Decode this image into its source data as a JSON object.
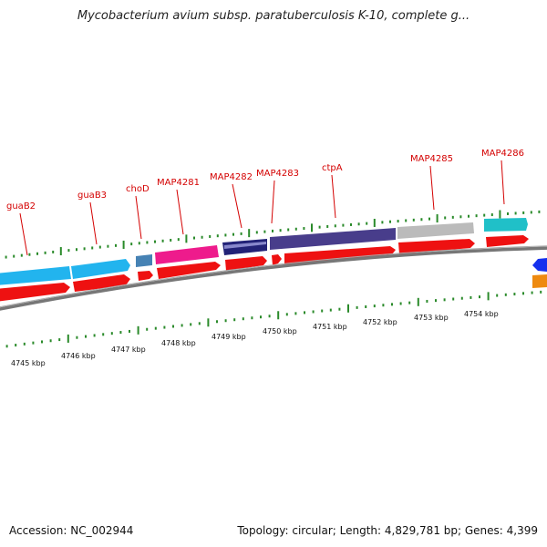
{
  "title": "Mycobacterium avium subsp. paratuberculosis K-10, complete g...",
  "footer": {
    "accession": "Accession: NC_002944",
    "info": "Topology: circular; Length: 4,829,781 bp; Genes: 4,399"
  },
  "kbp_labels": [
    "4745 kbp",
    "4746 kbp",
    "4747 kbp",
    "4748 kbp",
    "4749 kbp",
    "4750 kbp",
    "4751 kbp",
    "4752 kbp",
    "4753 kbp",
    "4754 kbp"
  ],
  "gene_labels": [
    "guaB2",
    "guaB3",
    "choD",
    "MAP4281",
    "MAP4282",
    "MAP4283",
    "ctpA",
    "MAP4285",
    "MAP4286"
  ],
  "colors": {
    "label": "#d40000",
    "tick": "#2a8a2a",
    "backbone": "#777777",
    "cds_strand": "#ee1111",
    "guaB": "#22b4ee",
    "choD": "#4682b4",
    "MAP4281": "#ee1b8c",
    "MAP4282": "#222277",
    "ctpA": "#483d8b",
    "MAP4285": "#bbbbbb",
    "MAP4286": "#20c0c8",
    "offscreen_blue": "#1530ee",
    "offscreen_orange": "#ee8a10"
  }
}
